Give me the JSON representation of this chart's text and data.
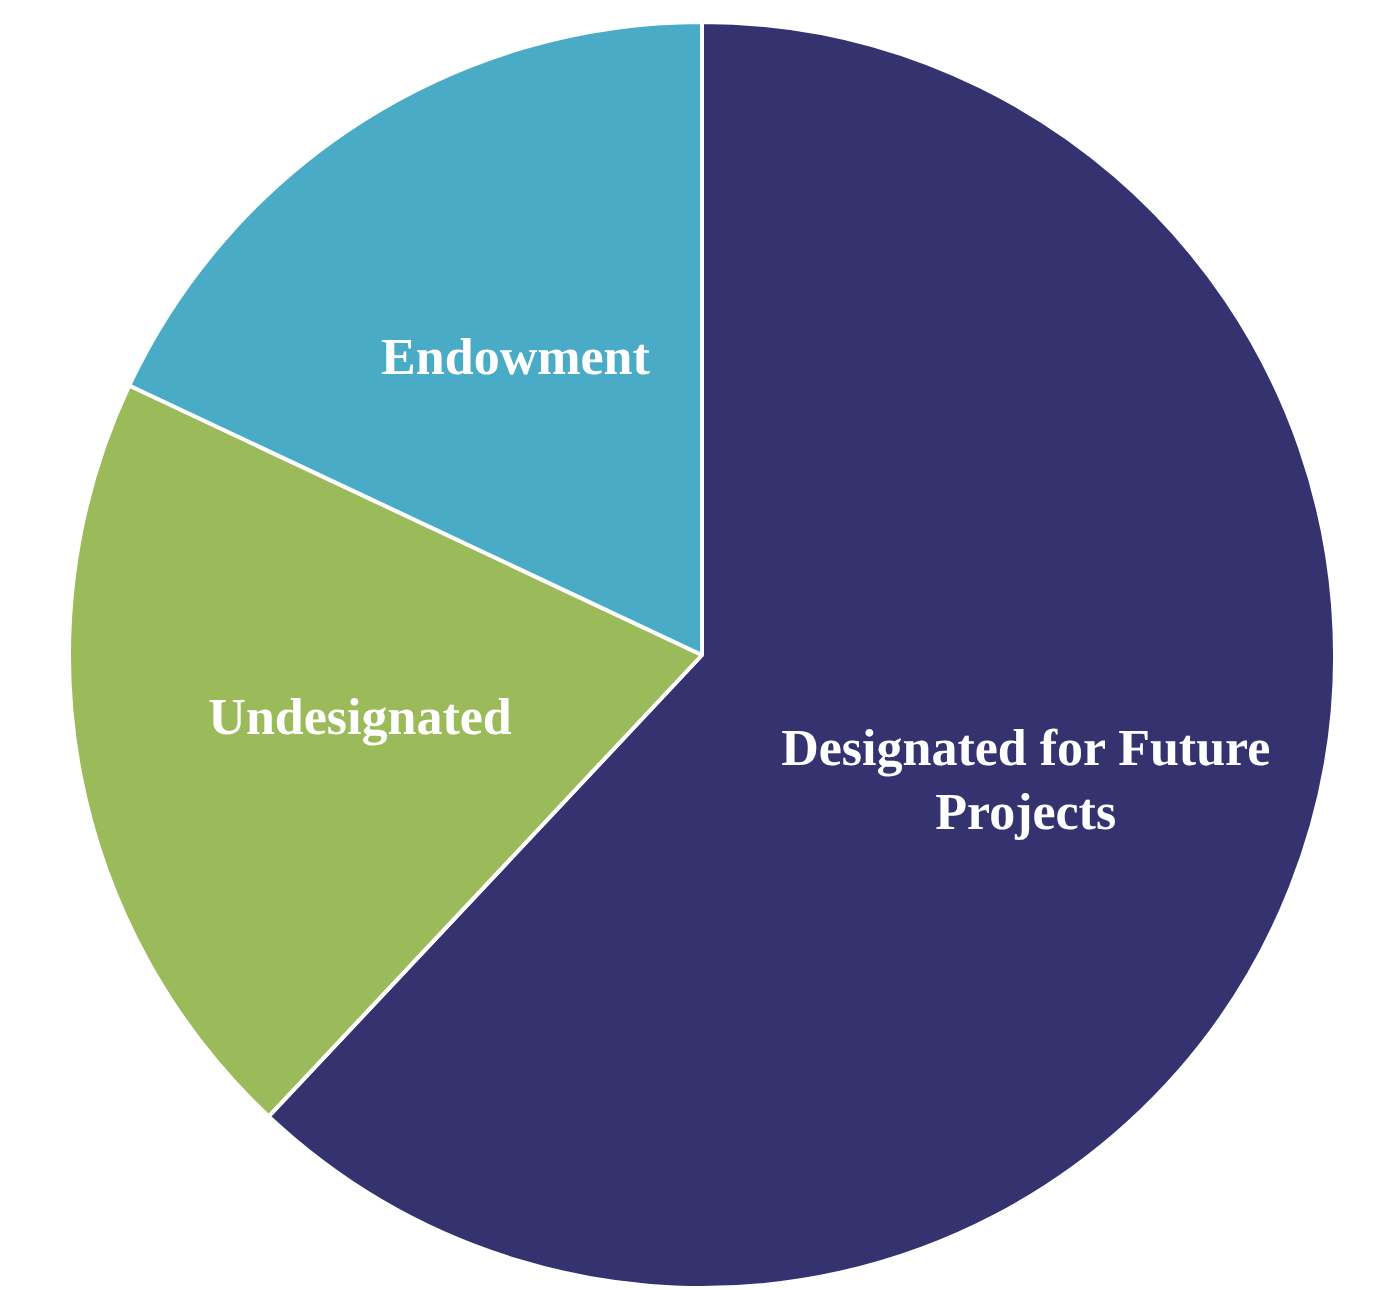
{
  "chart_data": {
    "type": "pie",
    "categories": [
      "Designated for Future Projects",
      "Undesignated",
      "Endowment"
    ],
    "values": [
      62,
      20,
      18
    ],
    "colors": [
      "#353270",
      "#9bba59",
      "#4aabc6"
    ],
    "data_labels": false,
    "legend": false
  }
}
